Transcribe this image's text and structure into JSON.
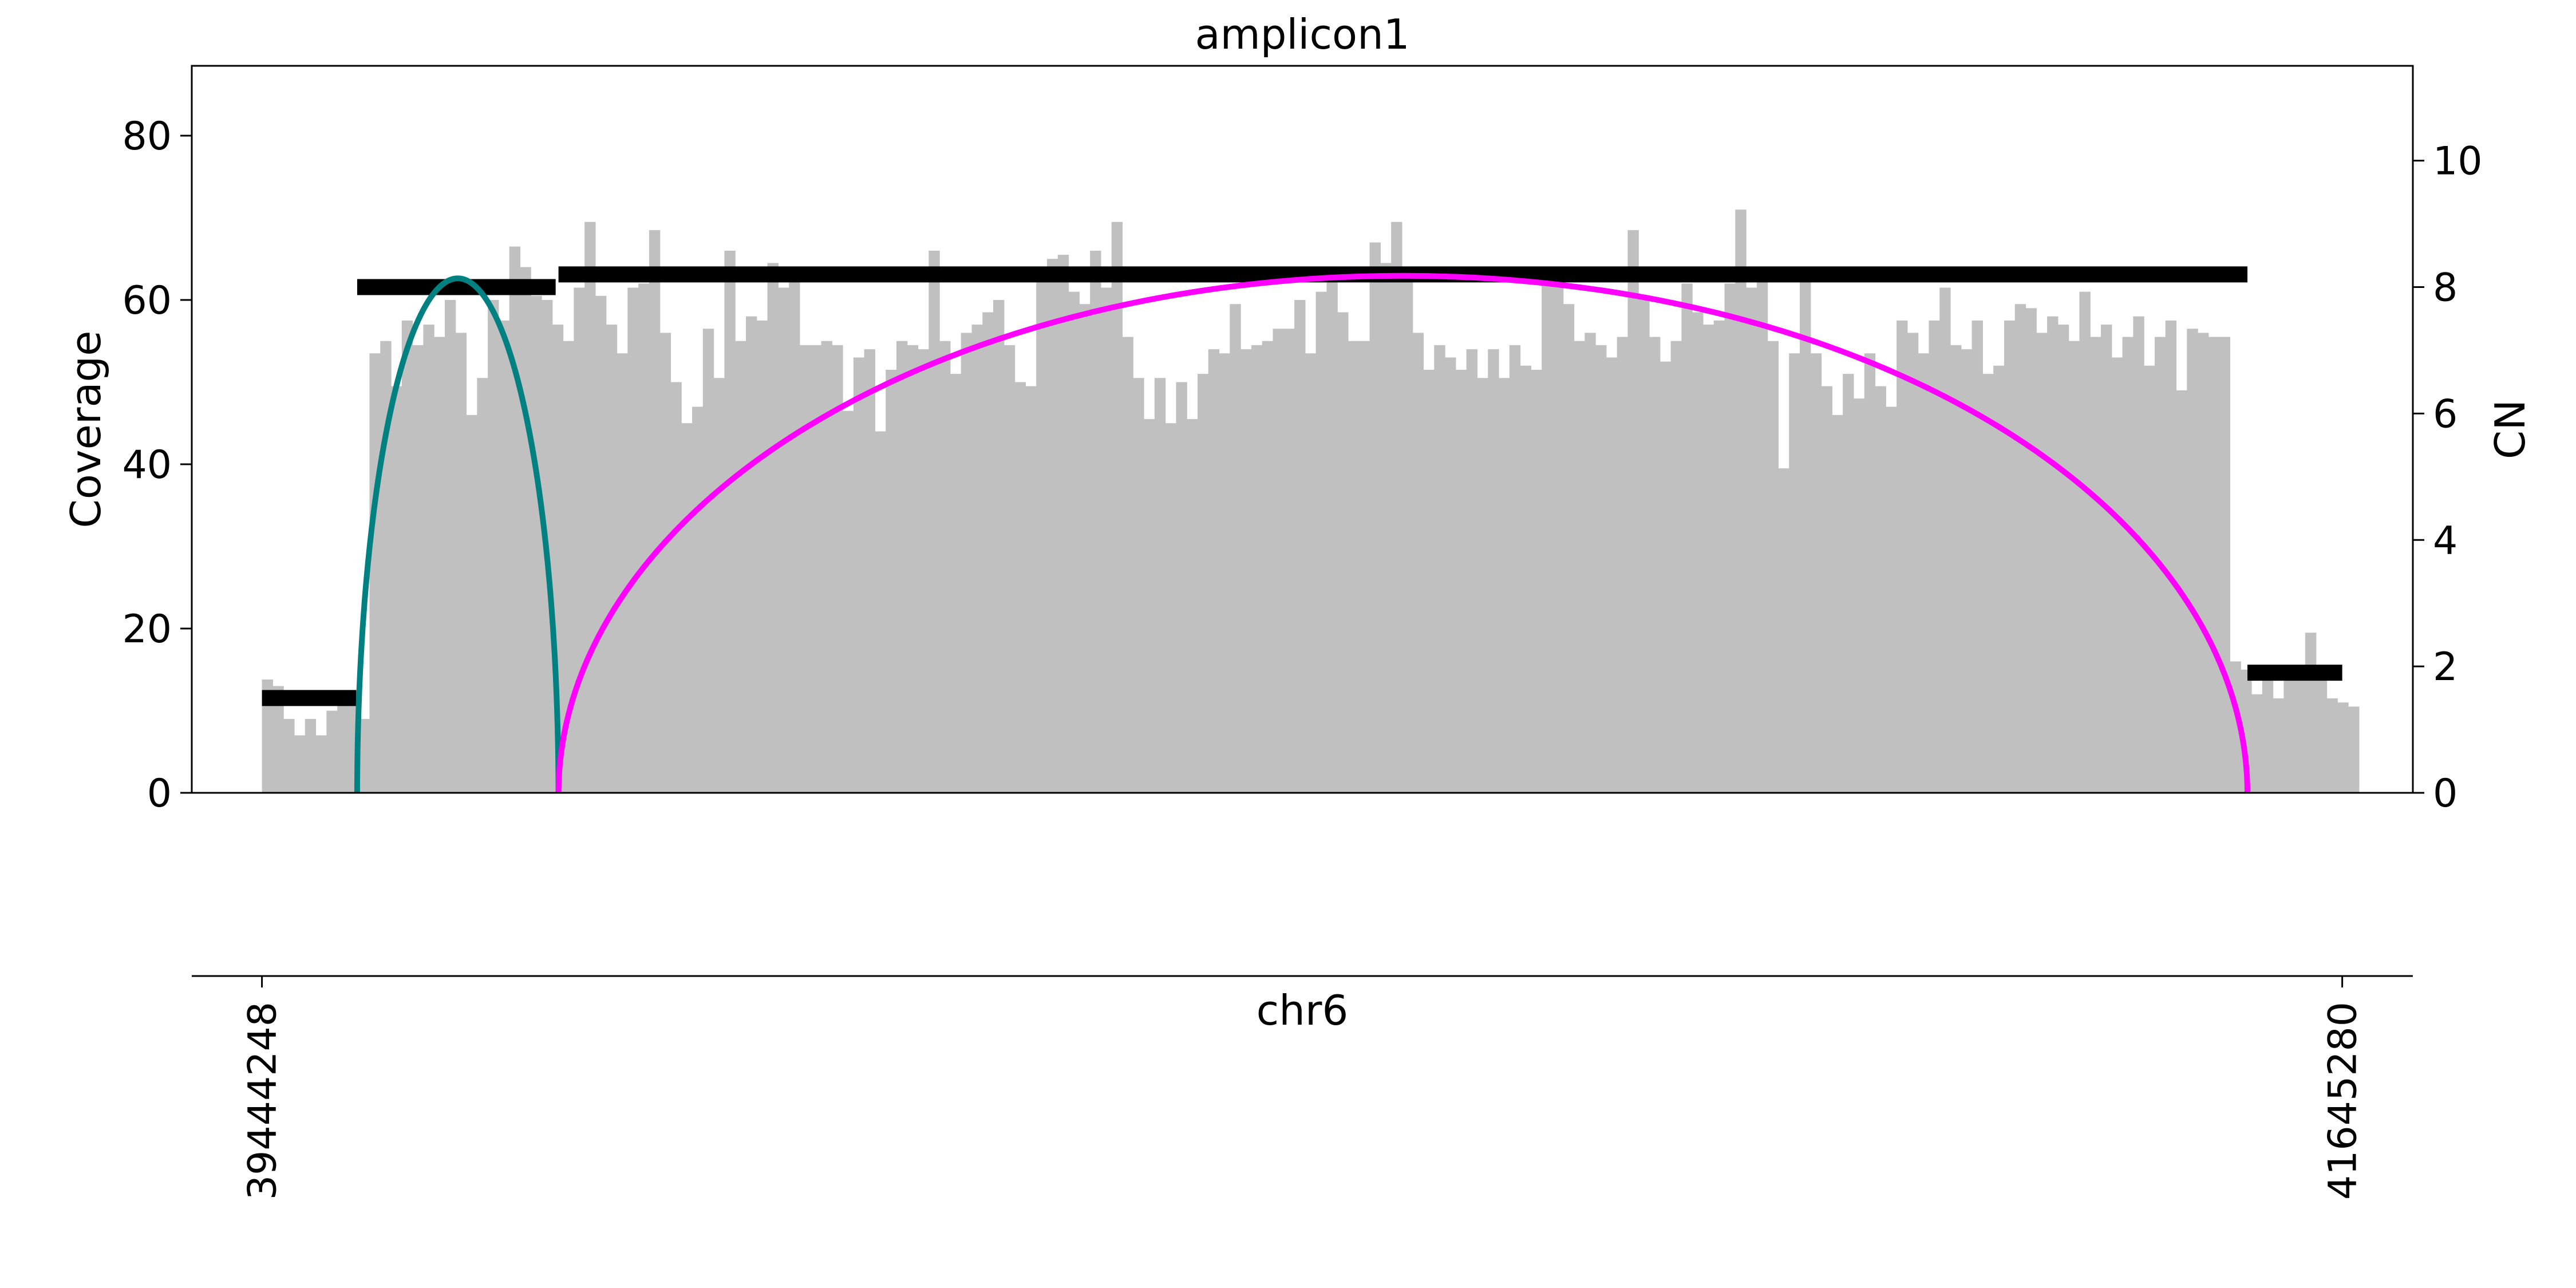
{
  "chart_data": {
    "type": "bar",
    "title": "amplicon1",
    "ylabel_left": "Coverage",
    "ylabel_right": "CN",
    "xlabel": "chr6",
    "xlim": [
      39370000,
      41720000
    ],
    "x_ticks": [
      39444248,
      41645280
    ],
    "x_tick_labels": [
      "39444248",
      "41645280"
    ],
    "ylim_left": [
      0,
      88.5
    ],
    "ylim_right": [
      0,
      11.5
    ],
    "yticks_left": [
      0,
      20,
      40,
      60,
      80
    ],
    "yticks_right": [
      0,
      2,
      4,
      6,
      8,
      10
    ],
    "coverage": {
      "start": 39444248,
      "end": 41663000,
      "values": [
        13.8,
        13.0,
        9.0,
        7.0,
        9.0,
        7.0,
        10.0,
        12.5,
        11.0,
        9.0,
        53.5,
        55.0,
        49.5,
        57.5,
        54.5,
        57.0,
        55.5,
        60.0,
        56.0,
        46.0,
        50.5,
        60.0,
        57.5,
        66.5,
        64.0,
        60.5,
        60.0,
        57.0,
        55.0,
        61.5,
        69.5,
        60.5,
        57.0,
        53.5,
        61.5,
        62.0,
        68.5,
        56.0,
        50.0,
        45.0,
        47.0,
        56.5,
        50.5,
        66.0,
        55.0,
        58.0,
        57.5,
        64.5,
        61.5,
        63.5,
        54.5,
        54.5,
        55.0,
        54.5,
        46.5,
        53.0,
        54.0,
        44.0,
        51.5,
        55.0,
        54.5,
        54.0,
        66.0,
        55.0,
        51.0,
        56.0,
        57.0,
        58.5,
        60.0,
        54.5,
        50.0,
        49.5,
        64.0,
        65.0,
        65.5,
        61.0,
        59.5,
        66.0,
        61.5,
        69.5,
        55.5,
        50.5,
        45.5,
        50.5,
        45.0,
        50.0,
        45.5,
        51.0,
        54.0,
        53.5,
        59.5,
        54.0,
        54.5,
        55.0,
        56.5,
        56.5,
        60.0,
        53.5,
        61.0,
        64.0,
        58.5,
        55.0,
        55.0,
        67.0,
        64.5,
        69.5,
        62.5,
        56.0,
        51.5,
        54.5,
        53.0,
        51.5,
        54.0,
        50.5,
        54.0,
        50.5,
        54.5,
        52.0,
        51.5,
        62.5,
        64.0,
        59.5,
        55.0,
        56.0,
        54.5,
        53.0,
        55.5,
        68.5,
        60.5,
        55.5,
        52.5,
        55.0,
        62.0,
        58.5,
        57.0,
        57.5,
        62.0,
        71.0,
        61.5,
        63.5,
        55.0,
        39.5,
        53.5,
        64.0,
        53.5,
        49.5,
        46.0,
        51.0,
        48.0,
        53.5,
        49.5,
        47.0,
        57.5,
        56.0,
        53.5,
        57.5,
        61.5,
        54.5,
        54.0,
        57.5,
        51.0,
        52.0,
        57.5,
        59.5,
        59.0,
        56.0,
        58.0,
        57.0,
        55.0,
        61.0,
        55.5,
        57.0,
        53.0,
        55.5,
        58.0,
        52.0,
        55.5,
        57.5,
        49.0,
        56.5,
        56.0,
        55.5,
        55.5,
        16.0,
        15.0,
        12.0,
        14.0,
        11.5,
        14.0,
        15.0,
        19.5,
        14.0,
        11.5,
        11.0,
        10.5
      ]
    },
    "cn_segments": [
      {
        "start": 39444248,
        "end": 39544000,
        "cn": 1.5
      },
      {
        "start": 39545000,
        "end": 39755000,
        "cn": 8.0
      },
      {
        "start": 39758000,
        "end": 41545000,
        "cn": 8.2
      },
      {
        "start": 41545000,
        "end": 41645280,
        "cn": 1.9
      }
    ],
    "breakpoint_arcs": [
      {
        "start": 39545000,
        "end": 39758000,
        "color": "#008080"
      },
      {
        "start": 39758000,
        "end": 41545000,
        "color": "#ff00ff"
      }
    ],
    "colors": {
      "coverage": "#c0c0c0",
      "cn": "#000000",
      "axes": "#000000"
    }
  }
}
